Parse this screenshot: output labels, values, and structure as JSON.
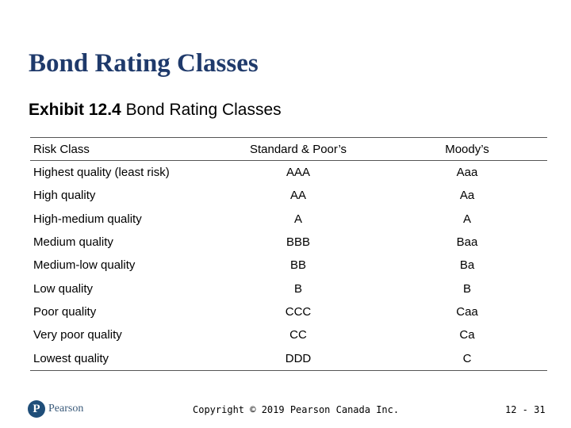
{
  "slide": {
    "title": "Bond Rating Classes",
    "exhibit_label": "Exhibit 12.4",
    "exhibit_title": "Bond Rating Classes"
  },
  "table": {
    "headers": [
      "Risk Class",
      "Standard & Poor’s",
      "Moody’s"
    ],
    "rows": [
      [
        "Highest quality (least risk)",
        "AAA",
        "Aaa"
      ],
      [
        "High quality",
        "AA",
        "Aa"
      ],
      [
        "High-medium quality",
        "A",
        "A"
      ],
      [
        "Medium quality",
        "BBB",
        "Baa"
      ],
      [
        "Medium-low quality",
        "BB",
        "Ba"
      ],
      [
        "Low quality",
        "B",
        "B"
      ],
      [
        "Poor quality",
        "CCC",
        "Caa"
      ],
      [
        "Very poor quality",
        "CC",
        "Ca"
      ],
      [
        "Lowest quality",
        "DDD",
        "C"
      ]
    ]
  },
  "footer": {
    "logo_letter": "P",
    "logo_text": "Pearson",
    "logo_icon": "pearson-logo-icon",
    "copyright": "Copyright © 2019 Pearson Canada Inc.",
    "page_number": "12 - 31"
  },
  "colors": {
    "title": "#1f3a6b",
    "logo": "#1f4e79",
    "rule": "#555555"
  }
}
